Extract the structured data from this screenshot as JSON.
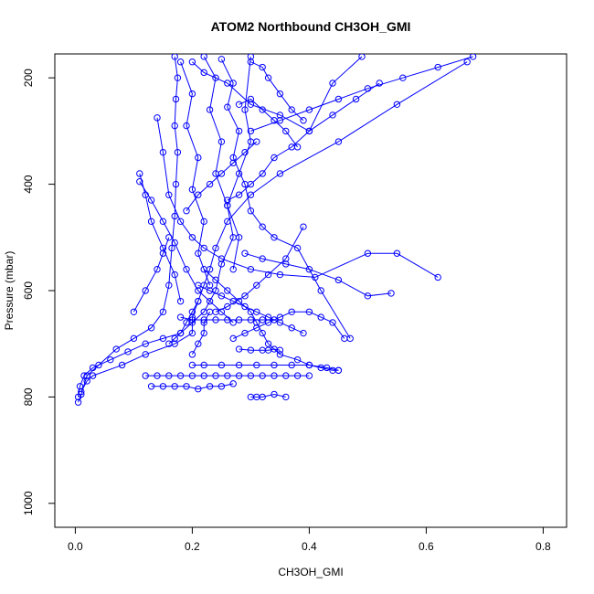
{
  "chart_data": {
    "type": "line",
    "title": "ATOM2 Northbound CH3OH_GMI",
    "xlabel": "CH3OH_GMI",
    "ylabel": "Pressure (mbar)",
    "xlim": [
      -0.035,
      0.84
    ],
    "ylim": [
      1045,
      155
    ],
    "y_reversed": true,
    "grid": false,
    "xticks": [
      0,
      0.2,
      0.4,
      0.6,
      0.8
    ],
    "xtick_labels": [
      "0.0",
      "0.2",
      "0.4",
      "0.6",
      "0.8"
    ],
    "yticks": [
      200,
      400,
      600,
      800,
      1000
    ],
    "ytick_labels": [
      "200",
      "400",
      "600",
      "800",
      "1000"
    ],
    "marker": "open-circle",
    "color": "#0000ff",
    "series": [
      {
        "x": [
          0.005,
          0.01,
          0.02,
          0.04,
          0.07,
          0.1,
          0.13,
          0.15,
          0.16,
          0.165,
          0.17,
          0.172,
          0.175,
          0.17,
          0.172,
          0.175,
          0.17
        ],
        "y": [
          810,
          795,
          760,
          740,
          710,
          690,
          670,
          640,
          590,
          520,
          460,
          400,
          340,
          290,
          240,
          200,
          160
        ]
      },
      {
        "x": [
          0.005,
          0.008,
          0.015,
          0.03,
          0.06,
          0.09,
          0.12,
          0.15,
          0.18,
          0.2,
          0.22,
          0.24,
          0.25,
          0.27,
          0.26,
          0.28,
          0.3,
          0.29,
          0.3
        ],
        "y": [
          800,
          780,
          760,
          745,
          730,
          715,
          700,
          690,
          680,
          660,
          640,
          600,
          550,
          500,
          440,
          380,
          320,
          260,
          160
        ]
      },
      {
        "x": [
          0.01,
          0.02,
          0.03,
          0.08,
          0.12,
          0.17,
          0.2,
          0.2,
          0.21,
          0.22,
          0.23,
          0.24,
          0.26,
          0.3,
          0.35,
          0.45,
          0.55,
          0.67
        ],
        "y": [
          790,
          770,
          760,
          740,
          720,
          700,
          680,
          650,
          620,
          590,
          560,
          520,
          470,
          420,
          380,
          320,
          250,
          170
        ]
      },
      {
        "x": [
          0.22,
          0.24,
          0.26,
          0.28,
          0.3,
          0.31,
          0.32,
          0.33,
          0.35,
          0.38,
          0.4,
          0.42,
          0.44,
          0.45
        ],
        "y": [
          560,
          580,
          600,
          620,
          640,
          660,
          680,
          700,
          720,
          730,
          740,
          745,
          750,
          750
        ]
      },
      {
        "x": [
          0.12,
          0.14,
          0.16,
          0.18,
          0.2,
          0.22,
          0.24,
          0.26,
          0.28,
          0.3,
          0.32,
          0.34,
          0.36,
          0.38,
          0.4
        ],
        "y": [
          760,
          760,
          760,
          760,
          760,
          760,
          760,
          760,
          760,
          760,
          760,
          760,
          760,
          760,
          760
        ]
      },
      {
        "x": [
          0.13,
          0.15,
          0.17,
          0.19,
          0.21,
          0.23,
          0.25,
          0.27
        ],
        "y": [
          780,
          780,
          780,
          780,
          785,
          780,
          780,
          775
        ]
      },
      {
        "x": [
          0.2,
          0.22,
          0.25,
          0.28,
          0.31,
          0.34,
          0.37,
          0.4,
          0.43,
          0.45
        ],
        "y": [
          740,
          740,
          740,
          740,
          740,
          740,
          740,
          740,
          745,
          750
        ]
      },
      {
        "x": [
          0.3,
          0.31,
          0.32,
          0.34,
          0.36
        ],
        "y": [
          800,
          800,
          800,
          795,
          800
        ]
      },
      {
        "x": [
          0.28,
          0.3,
          0.32,
          0.33,
          0.34,
          0.35
        ],
        "y": [
          710,
          712,
          712,
          712,
          710,
          712
        ]
      },
      {
        "x": [
          0.18,
          0.2,
          0.22,
          0.24,
          0.26,
          0.28,
          0.3,
          0.32,
          0.34
        ],
        "y": [
          650,
          655,
          655,
          655,
          655,
          655,
          655,
          655,
          655
        ]
      },
      {
        "x": [
          0.11,
          0.12,
          0.13,
          0.15,
          0.17,
          0.18
        ],
        "y": [
          380,
          420,
          470,
          520,
          570,
          620
        ]
      },
      {
        "x": [
          0.14,
          0.15,
          0.16,
          0.18,
          0.2,
          0.22,
          0.25,
          0.3,
          0.35,
          0.41,
          0.5,
          0.55,
          0.62
        ],
        "y": [
          275,
          340,
          420,
          470,
          500,
          520,
          540,
          560,
          570,
          575,
          530,
          530,
          575
        ]
      },
      {
        "x": [
          0.29,
          0.32,
          0.36,
          0.4,
          0.45,
          0.5,
          0.54
        ],
        "y": [
          530,
          540,
          550,
          560,
          580,
          610,
          605
        ]
      },
      {
        "x": [
          0.21,
          0.23,
          0.25,
          0.27,
          0.29,
          0.31,
          0.33,
          0.35,
          0.37,
          0.39
        ],
        "y": [
          590,
          600,
          610,
          620,
          630,
          640,
          650,
          660,
          670,
          680
        ]
      },
      {
        "x": [
          0.2,
          0.22,
          0.26,
          0.3,
          0.35,
          0.4,
          0.44,
          0.49
        ],
        "y": [
          170,
          190,
          210,
          250,
          270,
          300,
          210,
          160
        ]
      },
      {
        "x": [
          0.22,
          0.24,
          0.23,
          0.25,
          0.24,
          0.26,
          0.28,
          0.27
        ],
        "y": [
          160,
          200,
          260,
          320,
          380,
          440,
          500,
          560
        ]
      },
      {
        "x": [
          0.18,
          0.2,
          0.19,
          0.21,
          0.2,
          0.22,
          0.21,
          0.23
        ],
        "y": [
          170,
          230,
          290,
          350,
          410,
          470,
          530,
          590
        ]
      },
      {
        "x": [
          0.25,
          0.27,
          0.26,
          0.28,
          0.27,
          0.29,
          0.3,
          0.32,
          0.34,
          0.38,
          0.42,
          0.47
        ],
        "y": [
          165,
          210,
          255,
          300,
          350,
          400,
          450,
          480,
          500,
          520,
          600,
          690
        ]
      },
      {
        "x": [
          0.3,
          0.35,
          0.4,
          0.45,
          0.5,
          0.56,
          0.62,
          0.68
        ],
        "y": [
          300,
          280,
          260,
          240,
          220,
          200,
          180,
          160
        ]
      },
      {
        "x": [
          0.26,
          0.28,
          0.3,
          0.32,
          0.34,
          0.37,
          0.4,
          0.44,
          0.48,
          0.52
        ],
        "y": [
          430,
          420,
          400,
          380,
          350,
          330,
          300,
          270,
          240,
          210
        ]
      },
      {
        "x": [
          0.24,
          0.26,
          0.29,
          0.31,
          0.33,
          0.36,
          0.39
        ],
        "y": [
          640,
          630,
          610,
          590,
          570,
          540,
          480
        ]
      },
      {
        "x": [
          0.16,
          0.17,
          0.18,
          0.19,
          0.2,
          0.21
        ],
        "y": [
          700,
          690,
          680,
          660,
          640,
          620
        ]
      },
      {
        "x": [
          0.1,
          0.12,
          0.14,
          0.15,
          0.16
        ],
        "y": [
          640,
          600,
          560,
          530,
          500
        ]
      },
      {
        "x": [
          0.27,
          0.29,
          0.31,
          0.33,
          0.35,
          0.37,
          0.4,
          0.42,
          0.44,
          0.46
        ],
        "y": [
          690,
          680,
          670,
          660,
          650,
          640,
          640,
          650,
          660,
          690
        ]
      },
      {
        "x": [
          0.19,
          0.21,
          0.23,
          0.25,
          0.27,
          0.29,
          0.31
        ],
        "y": [
          450,
          420,
          400,
          380,
          360,
          340,
          320
        ]
      },
      {
        "x": [
          0.28,
          0.3,
          0.32,
          0.34,
          0.36,
          0.38
        ],
        "y": [
          250,
          240,
          260,
          280,
          300,
          330
        ]
      },
      {
        "x": [
          0.3,
          0.32,
          0.33,
          0.35,
          0.37,
          0.39
        ],
        "y": [
          170,
          180,
          200,
          230,
          260,
          280
        ]
      },
      {
        "x": [
          0.2,
          0.21,
          0.22,
          0.22,
          0.23
        ],
        "y": [
          720,
          700,
          680,
          660,
          640
        ]
      },
      {
        "x": [
          0.11,
          0.13,
          0.15,
          0.17,
          0.19,
          0.21,
          0.23,
          0.25,
          0.27
        ],
        "y": [
          395,
          430,
          470,
          510,
          560,
          600,
          620,
          640,
          660
        ]
      }
    ]
  }
}
